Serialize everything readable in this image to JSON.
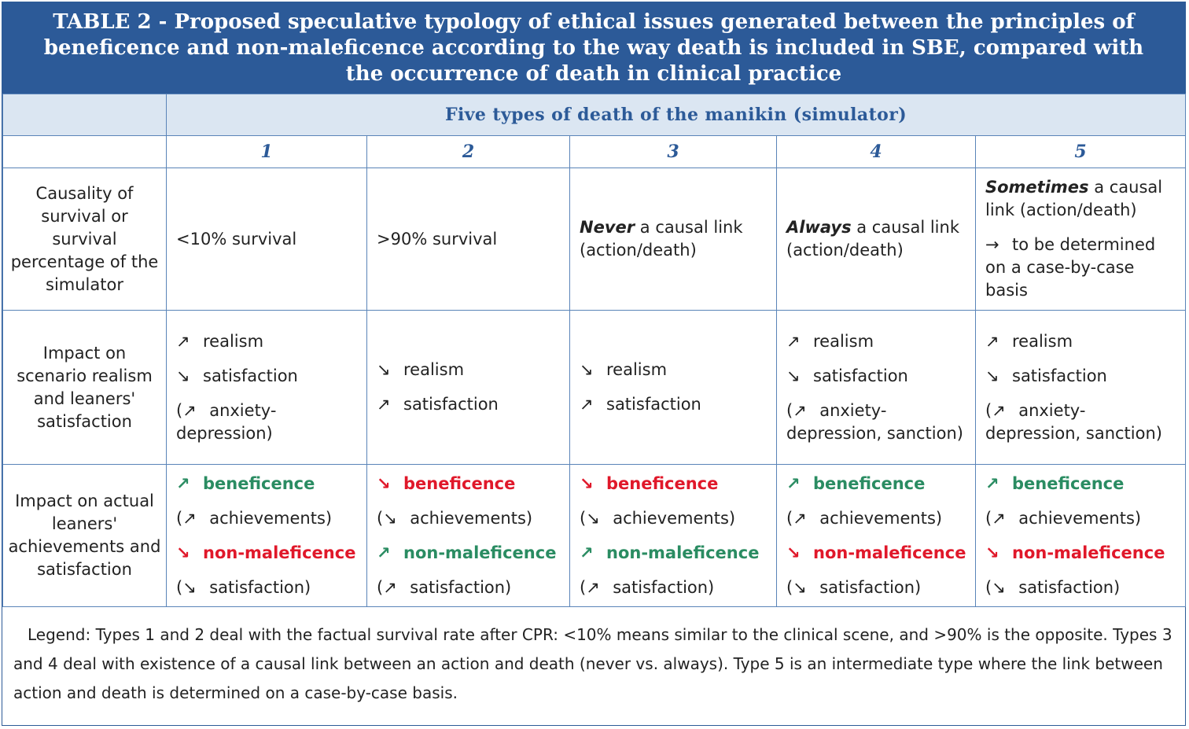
{
  "title": "TABLE 2 - Proposed speculative typology of ethical issues generated between the principles of beneficence and non-maleficence according to the way death is included in SBE, compared with the occurrence of death in clinical practice",
  "band_label": "Five types of death of the manikin (simulator)",
  "types": [
    "1",
    "2",
    "3",
    "4",
    "5"
  ],
  "rows": {
    "causality": {
      "header": "Causality of survival or survival percentage of the simulator",
      "cells": [
        {
          "text": "<10% survival"
        },
        {
          "text": ">90% survival"
        },
        {
          "em": "Never",
          "rest": " a causal link (action/death)"
        },
        {
          "em": "Always",
          "rest": " a causal link (action/death)"
        },
        {
          "em": "Sometimes",
          "rest": " a causal link (action/death)",
          "arrow": "→",
          "note": "to be determined on a case-by-case basis"
        }
      ]
    },
    "scenario": {
      "header": "Impact on scenario realism and leaners' satisfaction",
      "cells": [
        {
          "items": [
            {
              "arrow": "↗",
              "text": "realism"
            },
            {
              "arrow": "↘",
              "text": "satisfaction"
            }
          ],
          "paren_arrow": "↗",
          "paren_text": "anxiety-depression)"
        },
        {
          "items": [
            {
              "arrow": "↘",
              "text": "realism"
            },
            {
              "arrow": "↗",
              "text": "satisfaction"
            }
          ]
        },
        {
          "items": [
            {
              "arrow": "↘",
              "text": "realism"
            },
            {
              "arrow": "↗",
              "text": "satisfaction"
            }
          ]
        },
        {
          "items": [
            {
              "arrow": "↗",
              "text": "realism"
            },
            {
              "arrow": "↘",
              "text": "satisfaction"
            }
          ],
          "paren_arrow": "↗",
          "paren_text": "anxiety-depression, sanction)"
        },
        {
          "items": [
            {
              "arrow": "↗",
              "text": "realism"
            },
            {
              "arrow": "↘",
              "text": "satisfaction"
            }
          ],
          "paren_arrow": "↗",
          "paren_text": "anxiety-depression, sanction)"
        }
      ]
    },
    "actual": {
      "header": "Impact on actual leaners' achievements and satisfaction",
      "cells": [
        {
          "b_arrow": "↗",
          "b_label": "beneficence",
          "a_arrow": "↗",
          "a_text": "achievements)",
          "n_arrow": "↘",
          "n_label": "non-maleficence",
          "s_arrow": "↘",
          "s_text": "satisfaction)"
        },
        {
          "b_arrow": "↘",
          "b_label": "beneficence",
          "a_arrow": "↘",
          "a_text": "achievements)",
          "n_arrow": "↗",
          "n_label": "non-maleficence",
          "s_arrow": "↗",
          "s_text": "satisfaction)"
        },
        {
          "b_arrow": "↘",
          "b_label": "beneficence",
          "a_arrow": "↘",
          "a_text": "achievements)",
          "n_arrow": "↗",
          "n_label": "non-maleficence",
          "s_arrow": "↗",
          "s_text": "satisfaction)"
        },
        {
          "b_arrow": "↗",
          "b_label": "beneficence",
          "a_arrow": "↗",
          "a_text": "achievements)",
          "n_arrow": "↘",
          "n_label": "non-maleficence",
          "s_arrow": "↘",
          "s_text": "satisfaction)"
        },
        {
          "b_arrow": "↗",
          "b_label": "beneficence",
          "a_arrow": "↗",
          "a_text": "achievements)",
          "n_arrow": "↘",
          "n_label": "non-maleficence",
          "s_arrow": "↘",
          "s_text": "satisfaction)"
        }
      ]
    }
  },
  "legend": "Legend: Types 1 and 2 deal with the factual survival rate after CPR: <10% means similar to the clinical scene, and >90% is the opposite. Types 3 and 4 deal with existence of a causal link between an action and death (never vs. always). Type 5 is an intermediate type where the link between action and death is determined on a case-by-case basis.",
  "colors": {
    "title_bg": "#2c5a98",
    "band_bg": "#dbe6f2",
    "positive": "#2a8c62",
    "negative": "#e0182a"
  }
}
